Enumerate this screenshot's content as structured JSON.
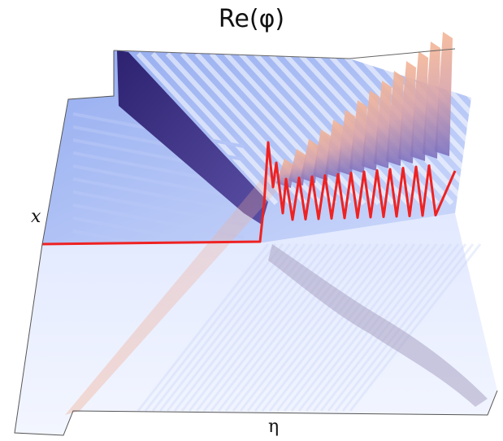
{
  "title": "Re(φ)",
  "axes": {
    "x_label": "x",
    "eta_label": "η"
  },
  "colors": {
    "surface_blue": "#8fa8ef",
    "surface_light": "#e8eeff",
    "ridge_dark": "#3a2f7a",
    "peak_orange": "#f2b296",
    "shadow_grey": "#a7a2bd",
    "slice_red": "#ee2222",
    "outline": "#555555"
  }
}
